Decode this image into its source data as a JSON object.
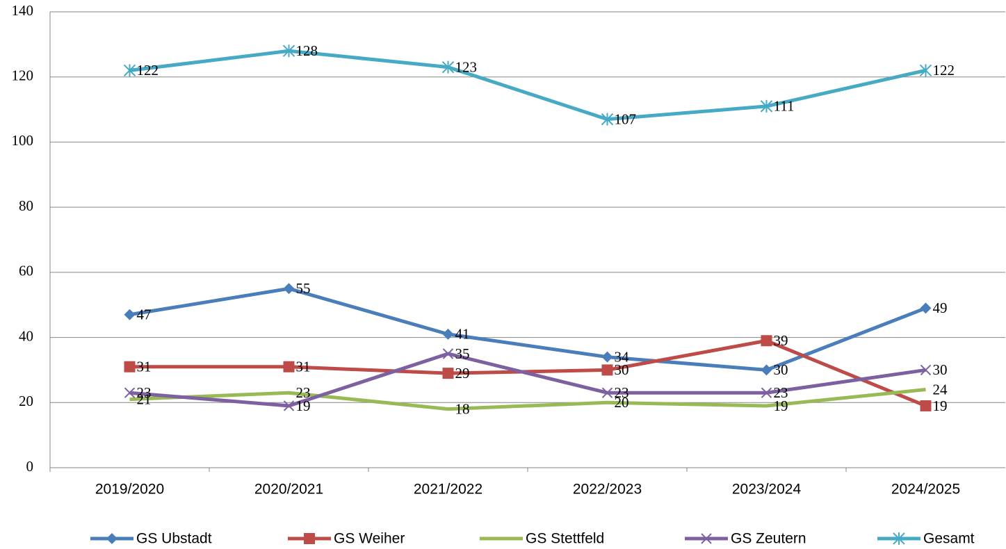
{
  "chart_data": {
    "type": "line",
    "categories": [
      "2019/2020",
      "2020/2021",
      "2021/2022",
      "2022/2023",
      "2023/2024",
      "2024/2025"
    ],
    "series": [
      {
        "name": "GS Ubstadt",
        "color": "#4a7ebb",
        "marker": "diamond",
        "values": [
          47,
          55,
          41,
          34,
          30,
          49
        ]
      },
      {
        "name": "GS Weiher",
        "color": "#be4b48",
        "marker": "square",
        "values": [
          31,
          31,
          29,
          30,
          39,
          19
        ]
      },
      {
        "name": "GS Stettfeld",
        "color": "#98b954",
        "marker": "none",
        "values": [
          21,
          23,
          18,
          20,
          19,
          24
        ]
      },
      {
        "name": "GS Zeutern",
        "color": "#7d60a0",
        "marker": "x",
        "values": [
          23,
          19,
          35,
          23,
          23,
          30
        ]
      },
      {
        "name": "Gesamt",
        "color": "#46aac5",
        "marker": "star",
        "values": [
          122,
          128,
          123,
          107,
          111,
          122
        ]
      }
    ],
    "ylim": [
      0,
      140
    ],
    "yticks": [
      0,
      20,
      40,
      60,
      80,
      100,
      120,
      140
    ],
    "grid": true,
    "legend": "bottom"
  }
}
